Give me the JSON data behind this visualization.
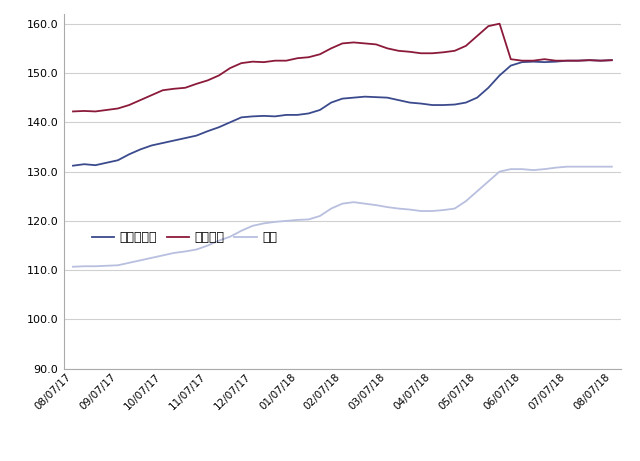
{
  "ylim": [
    90.0,
    162.0
  ],
  "yticks": [
    90.0,
    100.0,
    110.0,
    120.0,
    130.0,
    140.0,
    150.0,
    160.0
  ],
  "x_labels": [
    "08/07/17",
    "09/07/17",
    "10/07/17",
    "11/07/17",
    "12/07/17",
    "01/07/18",
    "02/07/18",
    "03/07/18",
    "04/07/18",
    "05/07/18",
    "06/07/18",
    "07/07/18",
    "08/07/18"
  ],
  "regular_color": "#3b4a8c",
  "premium_color": "#8b1a3a",
  "diesel_color": "#b8bfdf",
  "legend_labels": [
    "レギュラー",
    "ハイオク",
    "軽油"
  ],
  "regular": [
    131.2,
    131.5,
    131.3,
    131.8,
    132.3,
    133.5,
    134.5,
    135.3,
    135.8,
    136.3,
    136.8,
    137.3,
    138.2,
    139.0,
    140.0,
    141.0,
    141.2,
    141.3,
    141.2,
    141.5,
    141.5,
    141.8,
    142.5,
    144.0,
    144.8,
    145.0,
    145.2,
    145.1,
    145.0,
    144.5,
    144.0,
    143.8,
    143.5,
    143.5,
    143.6,
    144.0,
    145.0,
    147.0,
    149.5,
    151.5,
    152.2,
    152.3,
    152.2,
    152.3,
    152.5,
    152.5,
    152.6,
    152.5,
    152.6
  ],
  "premium": [
    142.2,
    142.3,
    142.2,
    142.5,
    142.8,
    143.5,
    144.5,
    145.5,
    146.5,
    146.8,
    147.0,
    147.8,
    148.5,
    149.5,
    151.0,
    152.0,
    152.3,
    152.2,
    152.5,
    152.5,
    153.0,
    153.2,
    153.8,
    155.0,
    156.0,
    156.2,
    156.0,
    155.8,
    155.0,
    154.5,
    154.3,
    154.0,
    154.0,
    154.2,
    154.5,
    155.5,
    157.5,
    159.5,
    160.0,
    152.8,
    152.5,
    152.5,
    152.8,
    152.5,
    152.5,
    152.5,
    152.6,
    152.5,
    152.6
  ],
  "diesel": [
    110.7,
    110.8,
    110.8,
    110.9,
    111.0,
    111.5,
    112.0,
    112.5,
    113.0,
    113.5,
    113.8,
    114.2,
    115.0,
    116.0,
    116.8,
    118.0,
    119.0,
    119.5,
    119.8,
    120.0,
    120.2,
    120.3,
    121.0,
    122.5,
    123.5,
    123.8,
    123.5,
    123.2,
    122.8,
    122.5,
    122.3,
    122.0,
    122.0,
    122.2,
    122.5,
    124.0,
    126.0,
    128.0,
    130.0,
    130.5,
    130.5,
    130.3,
    130.5,
    130.8,
    131.0,
    131.0,
    131.0,
    131.0,
    131.0
  ],
  "background_color": "#ffffff",
  "grid_color": "#d0d0d0",
  "line_width": 1.3
}
